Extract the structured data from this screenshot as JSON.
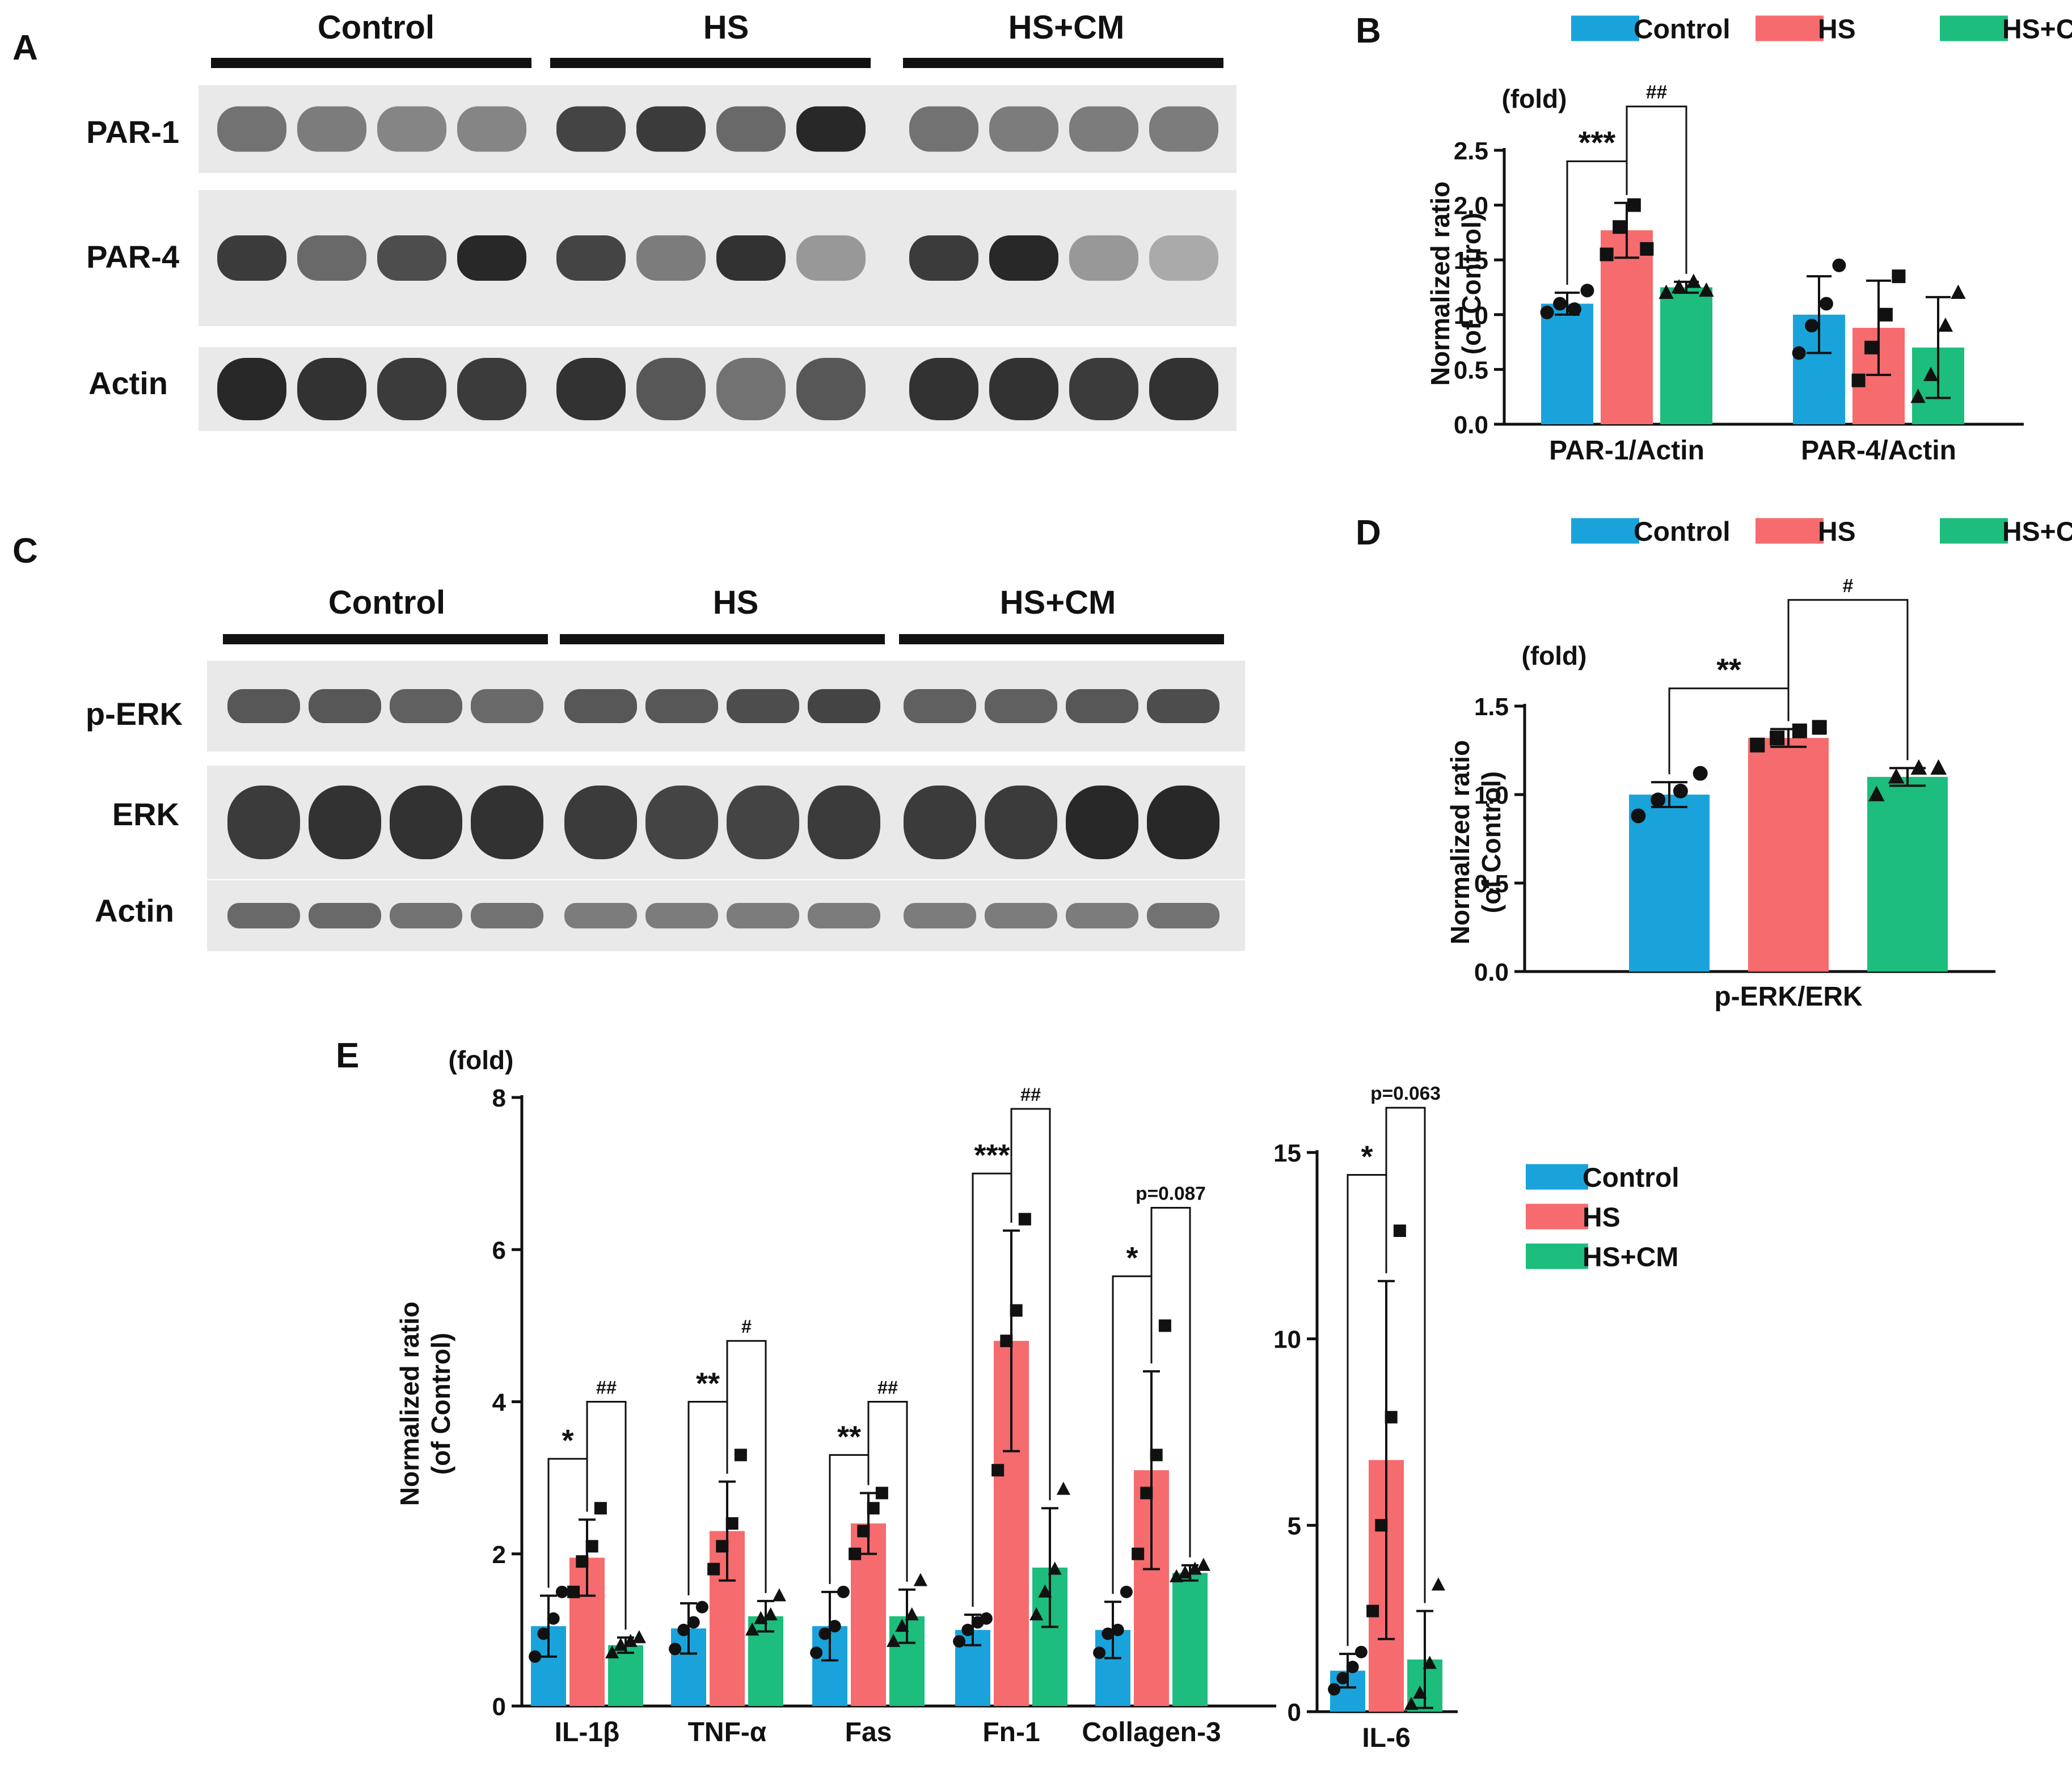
{
  "colors": {
    "Control": "#1aa3db",
    "HS": "#f56b6e",
    "HS+CM": "#1dbd7d",
    "axis": "#111111"
  },
  "panels": {
    "A": {
      "letter": "A",
      "groups": [
        "Control",
        "HS",
        "HS+CM"
      ],
      "rows": [
        {
          "label": "PAR-1",
          "intensity": [
            0.55,
            0.5,
            0.45,
            0.45,
            0.8,
            0.85,
            0.6,
            0.95,
            0.55,
            0.5,
            0.5,
            0.5
          ]
        },
        {
          "label": "PAR-4",
          "intensity": [
            0.85,
            0.6,
            0.75,
            0.95,
            0.8,
            0.5,
            0.9,
            0.35,
            0.85,
            0.95,
            0.35,
            0.25
          ]
        },
        {
          "label": "Actin",
          "intensity": [
            0.95,
            0.9,
            0.85,
            0.85,
            0.9,
            0.7,
            0.55,
            0.7,
            0.9,
            0.9,
            0.85,
            0.9
          ]
        }
      ]
    },
    "C": {
      "letter": "C",
      "groups": [
        "Control",
        "HS",
        "HS+CM"
      ],
      "rows": [
        {
          "label": "p-ERK",
          "intensity": [
            0.7,
            0.7,
            0.65,
            0.6,
            0.7,
            0.7,
            0.75,
            0.8,
            0.65,
            0.65,
            0.7,
            0.75
          ]
        },
        {
          "label": "ERK",
          "intensity": [
            0.85,
            0.9,
            0.9,
            0.9,
            0.85,
            0.8,
            0.8,
            0.85,
            0.85,
            0.85,
            0.95,
            0.95
          ]
        },
        {
          "label": "Actin",
          "intensity": [
            0.6,
            0.6,
            0.55,
            0.55,
            0.5,
            0.5,
            0.5,
            0.5,
            0.5,
            0.5,
            0.5,
            0.55
          ]
        }
      ]
    }
  },
  "chart_data": [
    {
      "id": "B",
      "type": "bar",
      "letter": "B",
      "unit": "(fold)",
      "ylabel": [
        "Normalized ratio",
        "(of Control)"
      ],
      "ylim": [
        0,
        2.5
      ],
      "yticks": [
        "0.0",
        "0.5",
        "1.0",
        "1.5",
        "2.0",
        "2.5"
      ],
      "legend": [
        "Control",
        "HS",
        "HS+CM"
      ],
      "categories": [
        "PAR-1/Actin",
        "PAR-4/Actin"
      ],
      "series": [
        {
          "name": "Control",
          "values": [
            1.1,
            1.0
          ],
          "err": [
            0.1,
            0.35
          ],
          "points": [
            [
              1.02,
              1.1,
              1.05,
              1.22
            ],
            [
              0.65,
              0.9,
              1.1,
              1.45
            ]
          ]
        },
        {
          "name": "HS",
          "values": [
            1.77,
            0.88
          ],
          "err": [
            0.25,
            0.43
          ],
          "points": [
            [
              1.55,
              1.8,
              2.0,
              1.6
            ],
            [
              0.4,
              0.7,
              1.0,
              1.35
            ]
          ]
        },
        {
          "name": "HS+CM",
          "values": [
            1.25,
            0.7
          ],
          "err": [
            0.05,
            0.46
          ],
          "points": [
            [
              1.2,
              1.25,
              1.3,
              1.22
            ],
            [
              0.25,
              0.45,
              0.9,
              1.2
            ]
          ]
        }
      ],
      "comparisons": [
        {
          "category": 0,
          "from": 0,
          "to": 1,
          "label": "***",
          "y": 2.4,
          "level": 1
        },
        {
          "category": 0,
          "from": 1,
          "to": 2,
          "label": "##",
          "y": 2.9,
          "level": 2
        }
      ]
    },
    {
      "id": "D",
      "type": "bar",
      "letter": "D",
      "unit": "(fold)",
      "ylabel": [
        "Normalized ratio",
        "(of Control)"
      ],
      "ylim": [
        0,
        1.5
      ],
      "yticks": [
        "0.0",
        "0.5",
        "1.0",
        "1.5"
      ],
      "legend": [
        "Control",
        "HS",
        "HS+CM"
      ],
      "categories": [
        "p-ERK/ERK"
      ],
      "series": [
        {
          "name": "Control",
          "values": [
            1.0
          ],
          "err": [
            0.07
          ],
          "points": [
            [
              0.88,
              0.97,
              1.02,
              1.12
            ]
          ]
        },
        {
          "name": "HS",
          "values": [
            1.32
          ],
          "err": [
            0.05
          ],
          "points": [
            [
              1.28,
              1.32,
              1.36,
              1.38
            ]
          ]
        },
        {
          "name": "HS+CM",
          "values": [
            1.1
          ],
          "err": [
            0.05
          ],
          "points": [
            [
              1.0,
              1.1,
              1.15,
              1.15
            ]
          ]
        }
      ],
      "comparisons": [
        {
          "category": 0,
          "from": 0,
          "to": 1,
          "label": "**",
          "y": 1.6,
          "level": 1
        },
        {
          "category": 0,
          "from": 1,
          "to": 2,
          "label": "#",
          "y": 2.1,
          "level": 2
        }
      ]
    },
    {
      "id": "E1",
      "type": "bar",
      "letter": "E",
      "unit": "(fold)",
      "ylabel": [
        "Normalized ratio",
        "(of Control)"
      ],
      "ylim": [
        0,
        8
      ],
      "yticks": [
        "0",
        "2",
        "4",
        "6",
        "8"
      ],
      "categories": [
        "IL-1β",
        "TNF-α",
        "Fas",
        "Fn-1",
        "Collagen-3"
      ],
      "series": [
        {
          "name": "Control",
          "values": [
            1.05,
            1.02,
            1.05,
            1.0,
            1.0
          ],
          "err": [
            0.4,
            0.33,
            0.45,
            0.2,
            0.37
          ],
          "points": [
            [
              0.65,
              0.95,
              1.15,
              1.5
            ],
            [
              0.75,
              1.0,
              1.1,
              1.3
            ],
            [
              0.7,
              0.95,
              1.05,
              1.5
            ],
            [
              0.85,
              1.0,
              1.1,
              1.15
            ],
            [
              0.7,
              0.95,
              1.0,
              1.5
            ]
          ]
        },
        {
          "name": "HS",
          "values": [
            1.95,
            2.3,
            2.4,
            4.8,
            3.1
          ],
          "err": [
            0.5,
            0.65,
            0.4,
            1.45,
            1.3
          ],
          "points": [
            [
              1.5,
              1.9,
              2.1,
              2.6
            ],
            [
              1.8,
              2.1,
              2.4,
              3.3
            ],
            [
              2.0,
              2.3,
              2.6,
              2.8
            ],
            [
              3.1,
              4.8,
              5.2,
              6.4
            ],
            [
              2.0,
              2.8,
              3.3,
              5.0
            ]
          ]
        },
        {
          "name": "HS+CM",
          "values": [
            0.8,
            1.18,
            1.18,
            1.82,
            1.75
          ],
          "err": [
            0.1,
            0.2,
            0.35,
            0.78,
            0.1
          ],
          "points": [
            [
              0.7,
              0.8,
              0.85,
              0.9
            ],
            [
              1.0,
              1.15,
              1.2,
              1.45
            ],
            [
              0.85,
              1.05,
              1.2,
              1.65
            ],
            [
              1.2,
              1.5,
              1.8,
              2.85
            ],
            [
              1.7,
              1.75,
              1.8,
              1.85
            ]
          ]
        }
      ],
      "comparisons": [
        {
          "category": 0,
          "from": 0,
          "to": 1,
          "label": "*",
          "y": 3.25,
          "level": 1
        },
        {
          "category": 0,
          "from": 1,
          "to": 2,
          "label": "##",
          "y": 4.0,
          "level": 2
        },
        {
          "category": 1,
          "from": 0,
          "to": 1,
          "label": "**",
          "y": 4.0,
          "level": 1
        },
        {
          "category": 1,
          "from": 1,
          "to": 2,
          "label": "#",
          "y": 4.8,
          "level": 2
        },
        {
          "category": 2,
          "from": 0,
          "to": 1,
          "label": "**",
          "y": 3.3,
          "level": 1
        },
        {
          "category": 2,
          "from": 1,
          "to": 2,
          "label": "##",
          "y": 4.0,
          "level": 2
        },
        {
          "category": 3,
          "from": 0,
          "to": 1,
          "label": "***",
          "y": 7.0,
          "level": 1
        },
        {
          "category": 3,
          "from": 1,
          "to": 2,
          "label": "##",
          "y": 7.85,
          "level": 2
        },
        {
          "category": 4,
          "from": 0,
          "to": 1,
          "label": "*",
          "y": 5.65,
          "level": 1
        },
        {
          "category": 4,
          "from": 1,
          "to": 2,
          "label": "p=0.087",
          "y": 6.55,
          "level": 2
        }
      ]
    },
    {
      "id": "E2",
      "type": "bar",
      "ylim": [
        0,
        15
      ],
      "yticks": [
        "0",
        "5",
        "10",
        "15"
      ],
      "categories": [
        "IL-6"
      ],
      "legend": [
        "Control",
        "HS",
        "HS+CM"
      ],
      "series": [
        {
          "name": "Control",
          "values": [
            1.1
          ],
          "err": [
            0.45
          ],
          "points": [
            [
              0.6,
              0.9,
              1.2,
              1.6
            ]
          ]
        },
        {
          "name": "HS",
          "values": [
            6.75
          ],
          "err": [
            4.8
          ],
          "points": [
            [
              2.7,
              5.0,
              7.9,
              12.9
            ]
          ]
        },
        {
          "name": "HS+CM",
          "values": [
            1.4
          ],
          "err": [
            1.3
          ],
          "points": [
            [
              0.2,
              0.5,
              1.3,
              3.4
            ]
          ]
        }
      ],
      "comparisons": [
        {
          "category": 0,
          "from": 0,
          "to": 1,
          "label": "*",
          "y": 14.4,
          "level": 1
        },
        {
          "category": 0,
          "from": 1,
          "to": 2,
          "label": "p=0.063",
          "y": 16.2,
          "level": 2
        }
      ]
    }
  ]
}
